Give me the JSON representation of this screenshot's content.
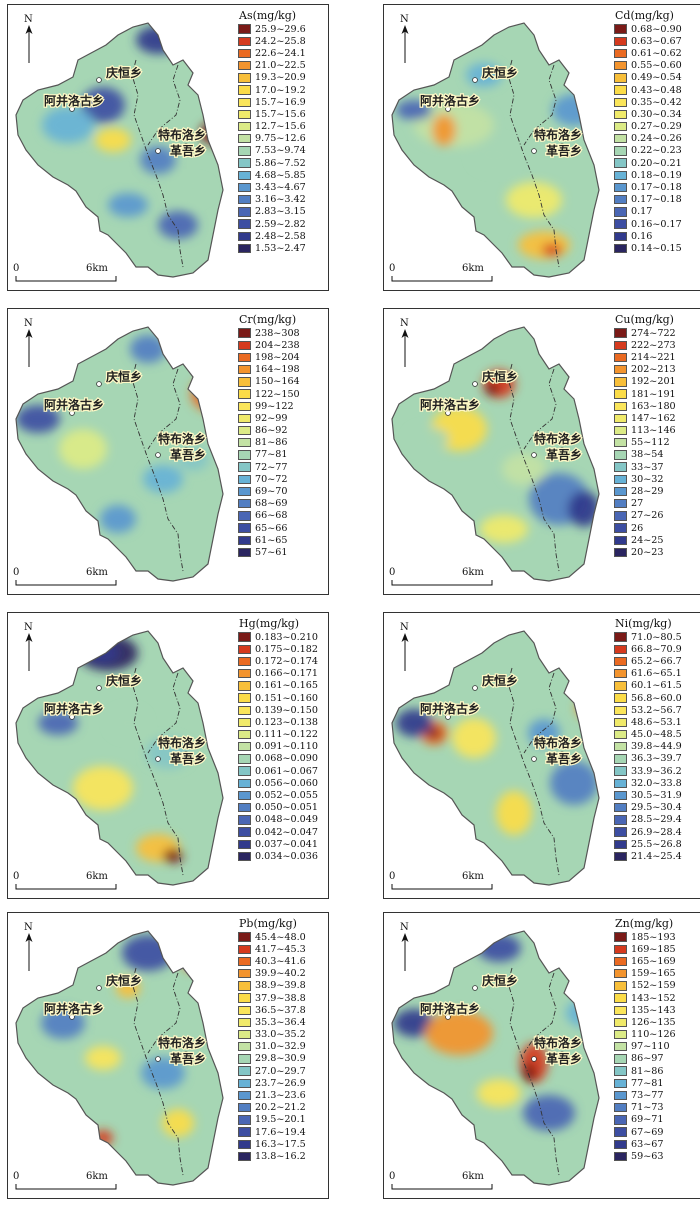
{
  "north_label": "N",
  "scale_bar": {
    "start": "0",
    "end": "6km"
  },
  "places": {
    "qingheng": "庆恒乡",
    "ajingluogu": "阿并洛古乡",
    "tebuluo": "特布洛乡",
    "gewu": "革吾乡"
  },
  "panels": [
    {
      "key": "as",
      "title": "As(mg/kg)",
      "classes": [
        "25.9~29.6",
        "24.2~25.8",
        "22.6~24.1",
        "21.0~22.5",
        "19.3~20.9",
        "17.0~19.2",
        "15.7~16.9",
        "15.7~15.6",
        "12.7~15.6",
        "9.75~12.6",
        "7.53~9.74",
        "5.86~7.52",
        "4.68~5.85",
        "3.43~4.67",
        "3.16~3.42",
        "2.83~3.15",
        "2.59~2.82",
        "2.48~2.58",
        "1.53~2.47"
      ]
    },
    {
      "key": "cd",
      "title": "Cd(mg/kg)",
      "classes": [
        "0.68~0.90",
        "0.63~0.67",
        "0.61~0.62",
        "0.55~0.60",
        "0.49~0.54",
        "0.43~0.48",
        "0.35~0.42",
        "0.30~0.34",
        "0.27~0.29",
        "0.24~0.26",
        "0.22~0.23",
        "0.20~0.21",
        "0.18~0.19",
        "0.17~0.18",
        "0.17~0.18",
        "0.17",
        "0.16~0.17",
        "0.16",
        "0.14~0.15"
      ]
    },
    {
      "key": "cr",
      "title": "Cr(mg/kg)",
      "classes": [
        "238~308",
        "204~238",
        "198~204",
        "164~198",
        "150~164",
        "122~150",
        "99~122",
        "92~99",
        "86~92",
        "81~86",
        "77~81",
        "72~77",
        "70~72",
        "69~70",
        "68~69",
        "66~68",
        "65~66",
        "61~65",
        "57~61"
      ]
    },
    {
      "key": "cu",
      "title": "Cu(mg/kg)",
      "classes": [
        "274~722",
        "222~273",
        "214~221",
        "202~213",
        "192~201",
        "181~191",
        "163~180",
        "147~162",
        "113~146",
        "55~112",
        "38~54",
        "33~37",
        "30~32",
        "28~29",
        "27",
        "27~26",
        "26",
        "24~25",
        "20~23"
      ]
    },
    {
      "key": "hg",
      "title": "Hg(mg/kg)",
      "classes": [
        "0.183~0.210",
        "0.175~0.182",
        "0.172~0.174",
        "0.166~0.171",
        "0.161~0.165",
        "0.151~0.160",
        "0.139~0.150",
        "0.123~0.138",
        "0.111~0.122",
        "0.091~0.110",
        "0.068~0.090",
        "0.061~0.067",
        "0.056~0.060",
        "0.052~0.055",
        "0.050~0.051",
        "0.048~0.049",
        "0.042~0.047",
        "0.037~0.041",
        "0.034~0.036"
      ]
    },
    {
      "key": "ni",
      "title": "Ni(mg/kg)",
      "classes": [
        "71.0~80.5",
        "66.8~70.9",
        "65.2~66.7",
        "61.6~65.1",
        "60.1~61.5",
        "56.8~60.0",
        "53.2~56.7",
        "48.6~53.1",
        "45.0~48.5",
        "39.8~44.9",
        "36.3~39.7",
        "33.9~36.2",
        "32.0~33.8",
        "30.5~31.9",
        "29.5~30.4",
        "28.5~29.4",
        "26.9~28.4",
        "25.5~26.8",
        "21.4~25.4"
      ]
    },
    {
      "key": "pb",
      "title": "Pb(mg/kg)",
      "classes": [
        "45.4~48.0",
        "41.7~45.3",
        "40.3~41.6",
        "39.9~40.2",
        "38.9~39.8",
        "37.9~38.8",
        "36.5~37.8",
        "35.3~36.4",
        "33.0~35.2",
        "31.0~32.9",
        "29.8~30.9",
        "27.0~29.7",
        "23.7~26.9",
        "21.3~23.6",
        "20.2~21.2",
        "19.5~20.1",
        "17.6~19.4",
        "16.3~17.5",
        "13.8~16.2"
      ]
    },
    {
      "key": "zn",
      "title": "Zn(mg/kg)",
      "classes": [
        "185~193",
        "169~185",
        "165~169",
        "159~165",
        "152~159",
        "143~152",
        "135~143",
        "126~135",
        "110~126",
        "97~110",
        "86~97",
        "81~86",
        "77~81",
        "73~77",
        "71~73",
        "69~71",
        "67~69",
        "63~67",
        "59~63"
      ]
    }
  ],
  "colors": {
    "ramp": [
      "#7a1a17",
      "#d53a1e",
      "#ea6a22",
      "#f3942e",
      "#f8bf3a",
      "#fbdc48",
      "#fae55a",
      "#f0ea6a",
      "#dceb86",
      "#c3e2a4",
      "#a6d6b4",
      "#84c6c6",
      "#67b2d6",
      "#5a97cf",
      "#527ec2",
      "#4a66b4",
      "#3d4ea2",
      "#313a8c",
      "#2a2560"
    ],
    "boundary": "#555555"
  }
}
